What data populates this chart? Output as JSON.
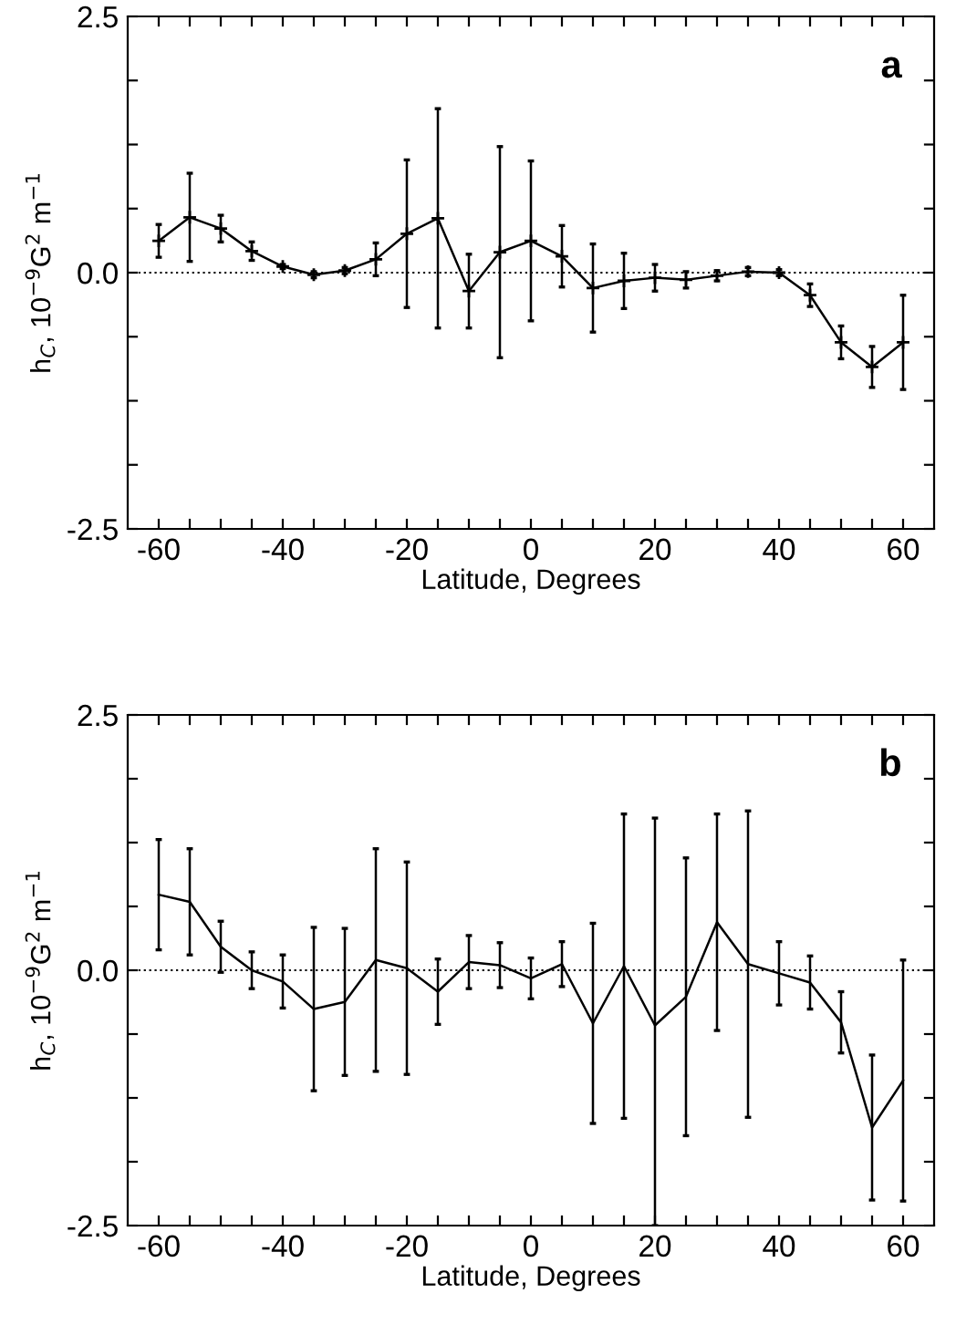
{
  "chart_data": [
    {
      "type": "line",
      "xlabel": "Latitude, Degrees",
      "ylabel": "h$_{C}$, 10$^{−9}$G$^{2}$ m$^{−1}$",
      "annotations": [
        "a"
      ],
      "marker": "cross",
      "line_style": "solid",
      "color": "#000000",
      "x": [
        -60,
        -55,
        -50,
        -45,
        -40,
        -35,
        -30,
        -25,
        -20,
        -15,
        -10,
        -5,
        0,
        5,
        10,
        15,
        20,
        25,
        30,
        35,
        40,
        45,
        50,
        55,
        60
      ],
      "values": [
        0.31,
        0.54,
        0.43,
        0.21,
        0.06,
        -0.02,
        0.02,
        0.13,
        0.38,
        0.53,
        -0.18,
        0.2,
        0.31,
        0.16,
        -0.15,
        -0.08,
        -0.05,
        -0.07,
        -0.03,
        0.01,
        0.0,
        -0.22,
        -0.68,
        -0.92,
        -0.68
      ],
      "errors": [
        0.16,
        0.43,
        0.13,
        0.09,
        0.02,
        0.03,
        0.03,
        0.16,
        0.72,
        1.07,
        0.36,
        1.03,
        0.78,
        0.3,
        0.43,
        0.27,
        0.13,
        0.08,
        0.05,
        0.04,
        0.03,
        0.11,
        0.16,
        0.2,
        0.46
      ],
      "xlim": [
        -65,
        65
      ],
      "ylim": [
        -2.5,
        2.5
      ],
      "xticks": [
        {
          "value": -60,
          "label": "-60"
        },
        {
          "value": -55,
          "label": null
        },
        {
          "value": -50,
          "label": null
        },
        {
          "value": -45,
          "label": null
        },
        {
          "value": -40,
          "label": "-40"
        },
        {
          "value": -35,
          "label": null
        },
        {
          "value": -30,
          "label": null
        },
        {
          "value": -25,
          "label": null
        },
        {
          "value": -20,
          "label": "-20"
        },
        {
          "value": -15,
          "label": null
        },
        {
          "value": -10,
          "label": null
        },
        {
          "value": -5,
          "label": null
        },
        {
          "value": 0,
          "label": "0"
        },
        {
          "value": 5,
          "label": null
        },
        {
          "value": 10,
          "label": null
        },
        {
          "value": 15,
          "label": null
        },
        {
          "value": 20,
          "label": "20"
        },
        {
          "value": 25,
          "label": null
        },
        {
          "value": 30,
          "label": null
        },
        {
          "value": 35,
          "label": null
        },
        {
          "value": 40,
          "label": "40"
        },
        {
          "value": 45,
          "label": null
        },
        {
          "value": 50,
          "label": null
        },
        {
          "value": 55,
          "label": null
        },
        {
          "value": 60,
          "label": "60"
        }
      ],
      "yticks": [
        {
          "value": -2.5,
          "label": "-2.5"
        },
        {
          "value": -1.875,
          "label": null
        },
        {
          "value": -1.25,
          "label": null
        },
        {
          "value": -0.625,
          "label": null
        },
        {
          "value": 0,
          "label": "0.0"
        },
        {
          "value": 0.625,
          "label": null
        },
        {
          "value": 1.25,
          "label": null
        },
        {
          "value": 1.875,
          "label": null
        },
        {
          "value": 2.5,
          "label": "2.5"
        }
      ],
      "ref_lines": [
        {
          "axis": "y",
          "value": 0,
          "line_style": "dotted",
          "color": "#000000"
        }
      ],
      "grid": false,
      "legend": false
    },
    {
      "type": "line",
      "xlabel": "Latitude, Degrees",
      "ylabel": "h$_{C}$, 10$^{−9}$G$^{2}$ m$^{−1}$",
      "annotations": [
        "b"
      ],
      "line_style": "solid",
      "color": "#000000",
      "x": [
        -60,
        -55,
        -50,
        -45,
        -40,
        -35,
        -30,
        -25,
        -20,
        -15,
        -10,
        -5,
        0,
        5,
        10,
        15,
        20,
        25,
        30,
        35,
        40,
        45,
        50,
        55,
        60
      ],
      "values": [
        0.74,
        0.67,
        0.23,
        0.0,
        -0.11,
        -0.38,
        -0.31,
        0.1,
        0.02,
        -0.21,
        0.08,
        0.05,
        -0.08,
        0.06,
        -0.52,
        0.04,
        -0.54,
        -0.26,
        0.47,
        0.06,
        -0.03,
        -0.12,
        -0.51,
        -1.54,
        -1.08
      ],
      "errors": [
        0.54,
        0.52,
        0.25,
        0.18,
        0.26,
        0.8,
        0.72,
        1.09,
        1.04,
        0.32,
        0.26,
        0.22,
        0.2,
        0.22,
        0.98,
        1.49,
        [
          -2.5,
          1.49
        ],
        1.36,
        1.06,
        1.5,
        0.31,
        0.26,
        0.3,
        0.71,
        1.18
      ],
      "xlim": [
        -65,
        65
      ],
      "ylim": [
        -2.5,
        2.5
      ],
      "xticks": [
        {
          "value": -60,
          "label": "-60"
        },
        {
          "value": -55,
          "label": null
        },
        {
          "value": -50,
          "label": null
        },
        {
          "value": -45,
          "label": null
        },
        {
          "value": -40,
          "label": "-40"
        },
        {
          "value": -35,
          "label": null
        },
        {
          "value": -30,
          "label": null
        },
        {
          "value": -25,
          "label": null
        },
        {
          "value": -20,
          "label": "-20"
        },
        {
          "value": -15,
          "label": null
        },
        {
          "value": -10,
          "label": null
        },
        {
          "value": -5,
          "label": null
        },
        {
          "value": 0,
          "label": "0"
        },
        {
          "value": 5,
          "label": null
        },
        {
          "value": 10,
          "label": null
        },
        {
          "value": 15,
          "label": null
        },
        {
          "value": 20,
          "label": "20"
        },
        {
          "value": 25,
          "label": null
        },
        {
          "value": 30,
          "label": null
        },
        {
          "value": 35,
          "label": null
        },
        {
          "value": 40,
          "label": "40"
        },
        {
          "value": 45,
          "label": null
        },
        {
          "value": 50,
          "label": null
        },
        {
          "value": 55,
          "label": null
        },
        {
          "value": 60,
          "label": "60"
        }
      ],
      "yticks": [
        {
          "value": -2.5,
          "label": "-2.5"
        },
        {
          "value": -1.875,
          "label": null
        },
        {
          "value": -1.25,
          "label": null
        },
        {
          "value": -0.625,
          "label": null
        },
        {
          "value": 0,
          "label": "0.0"
        },
        {
          "value": 0.625,
          "label": null
        },
        {
          "value": 1.25,
          "label": null
        },
        {
          "value": 1.875,
          "label": null
        },
        {
          "value": 2.5,
          "label": "2.5"
        }
      ],
      "ref_lines": [
        {
          "axis": "y",
          "value": 0,
          "line_style": "dotted",
          "color": "#000000"
        }
      ],
      "grid": false,
      "legend": false
    }
  ]
}
